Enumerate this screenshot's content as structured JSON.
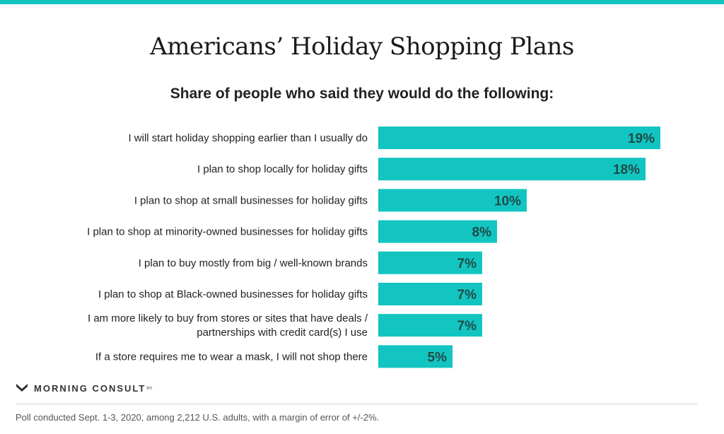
{
  "header": {
    "title": "Americans’ Holiday Shopping Plans",
    "subtitle": "Share of people who said they would do the following:"
  },
  "chart_data": {
    "type": "bar",
    "orientation": "horizontal",
    "bar_color": "#12c5c0",
    "label_color": "#1f4b4a",
    "categories": [
      [
        "I will start holiday shopping earlier than I usually do"
      ],
      [
        "I plan to shop locally for holiday gifts"
      ],
      [
        "I plan to shop at small businesses for holiday gifts"
      ],
      [
        "I plan to shop at minority-owned businesses for holiday gifts"
      ],
      [
        "I plan to buy mostly from big / well-known brands"
      ],
      [
        "I plan to shop at Black-owned businesses for holiday gifts"
      ],
      [
        "I am more likely to buy from stores or sites that have deals /",
        "partnerships with credit card(s) I use"
      ],
      [
        "If a store requires me to wear a mask, I will not shop there"
      ]
    ],
    "values": [
      19,
      18,
      10,
      8,
      7,
      7,
      7,
      5
    ],
    "value_labels": [
      "19%",
      "18%",
      "10%",
      "8%",
      "7%",
      "7%",
      "7%",
      "5%"
    ],
    "xlim": [
      0,
      19
    ]
  },
  "branding": {
    "logo_text": "MORNING CONSULT",
    "logo_mark": "tm"
  },
  "footer": {
    "note": "Poll conducted Sept. 1-3, 2020, among 2,212 U.S. adults, with a margin of error of +/-2%."
  },
  "colors": {
    "accent": "#12c5c0"
  }
}
